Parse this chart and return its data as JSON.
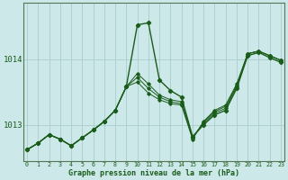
{
  "bg_color": "#cce8e8",
  "line_color": "#1a5c1a",
  "grid_color": "#aacccc",
  "xlabel": "Graphe pression niveau de la mer (hPa)",
  "xlabel_color": "#1a5c1a",
  "ylabel_color": "#1a5c1a",
  "ytick_labels": [
    1013,
    1014
  ],
  "ylim": [
    1012.45,
    1014.85
  ],
  "xlim": [
    -0.3,
    23.3
  ],
  "series": [
    [
      1012.62,
      1012.72,
      1012.85,
      1012.78,
      1012.68,
      1012.8,
      1012.92,
      1013.05,
      1013.22,
      1013.58,
      1014.52,
      1014.55,
      1013.68,
      1013.52,
      1013.42,
      1012.82,
      1013.0,
      1013.15,
      1013.22,
      1013.55,
      1014.05,
      1014.1,
      1014.02,
      1013.95
    ],
    [
      1012.62,
      1012.72,
      1012.85,
      1012.78,
      1012.68,
      1012.8,
      1012.92,
      1013.05,
      1013.22,
      1013.58,
      1013.78,
      1013.62,
      1013.45,
      1013.38,
      1013.35,
      1012.8,
      1013.02,
      1013.18,
      1013.25,
      1013.58,
      1014.08,
      1014.12,
      1014.05,
      1013.98
    ],
    [
      1012.62,
      1012.72,
      1012.85,
      1012.78,
      1012.68,
      1012.8,
      1012.92,
      1013.05,
      1013.22,
      1013.58,
      1013.72,
      1013.55,
      1013.42,
      1013.35,
      1013.32,
      1012.8,
      1013.04,
      1013.2,
      1013.28,
      1013.6,
      1014.08,
      1014.12,
      1014.05,
      1013.98
    ],
    [
      1012.62,
      1012.72,
      1012.85,
      1012.78,
      1012.68,
      1012.8,
      1012.92,
      1013.05,
      1013.22,
      1013.58,
      1013.65,
      1013.48,
      1013.38,
      1013.32,
      1013.3,
      1012.78,
      1013.05,
      1013.22,
      1013.3,
      1013.62,
      1014.08,
      1014.12,
      1014.05,
      1013.98
    ]
  ],
  "figsize": [
    3.2,
    2.0
  ],
  "dpi": 100
}
